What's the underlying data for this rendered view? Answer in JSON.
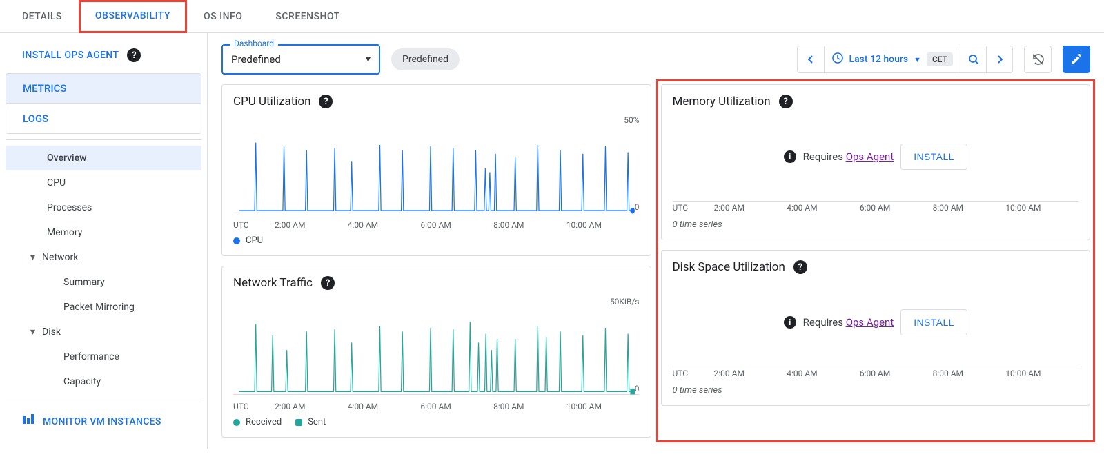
{
  "tabs": {
    "details": "DETAILS",
    "observability": "OBSERVABILITY",
    "os_info": "OS INFO",
    "screenshot": "SCREENSHOT"
  },
  "sidebar": {
    "install_ops": "INSTALL OPS AGENT",
    "side_tabs": {
      "metrics": "METRICS",
      "logs": "LOGS"
    },
    "nav": {
      "overview": "Overview",
      "cpu": "CPU",
      "processes": "Processes",
      "memory": "Memory",
      "network": "Network",
      "summary": "Summary",
      "packet_mirroring": "Packet Mirroring",
      "disk": "Disk",
      "performance": "Performance",
      "capacity": "Capacity"
    },
    "monitor": "MONITOR VM INSTANCES"
  },
  "toolbar": {
    "dashboard_label": "Dashboard",
    "dashboard_value": "Predefined",
    "chip": "Predefined",
    "time_range": "Last 12 hours",
    "tz": "CET"
  },
  "colors": {
    "accent": "#1a73e8",
    "cpu_line": "#1a73e8",
    "received": "#26a69a",
    "sent": "#26a69a",
    "highlight": "#ea4335",
    "link_purple": "#7b1fa2"
  },
  "charts": {
    "cpu": {
      "title": "CPU Utilization",
      "y_top": "50%",
      "y_bot": "0",
      "x_labels": [
        "UTC",
        "2:00 AM",
        "4:00 AM",
        "6:00 AM",
        "8:00 AM",
        "10:00 AM"
      ],
      "legend": [
        {
          "label": "CPU",
          "color": "#1a73e8",
          "shape": "circle"
        }
      ],
      "spike_x": [
        40,
        90,
        130,
        180,
        210,
        260,
        300,
        350,
        390,
        430,
        447,
        455,
        465,
        500,
        540,
        580,
        620,
        660,
        700
      ],
      "spike_h": [
        95,
        90,
        85,
        88,
        70,
        92,
        85,
        90,
        88,
        85,
        60,
        55,
        80,
        75,
        92,
        85,
        80,
        90,
        82
      ],
      "baseline": 3
    },
    "net": {
      "title": "Network Traffic",
      "y_top": "50KiB/s",
      "y_bot": "0",
      "x_labels": [
        "UTC",
        "2:00 AM",
        "4:00 AM",
        "6:00 AM",
        "8:00 AM",
        "10:00 AM"
      ],
      "legend": [
        {
          "label": "Received",
          "color": "#26a69a",
          "shape": "circle"
        },
        {
          "label": "Sent",
          "color": "#26a69a",
          "shape": "square"
        }
      ],
      "spike_x": [
        40,
        70,
        95,
        130,
        180,
        210,
        260,
        300,
        350,
        390,
        420,
        435,
        448,
        458,
        468,
        500,
        540,
        555,
        580,
        620,
        660,
        700
      ],
      "spike_h": [
        95,
        80,
        60,
        85,
        88,
        70,
        92,
        85,
        90,
        88,
        98,
        70,
        82,
        60,
        75,
        75,
        92,
        78,
        85,
        80,
        90,
        82
      ],
      "baseline": 4
    },
    "mem": {
      "title": "Memory Utilization",
      "requires": "Requires",
      "ops_agent": "Ops Agent",
      "install": "INSTALL",
      "x_labels": [
        "UTC",
        "2:00 AM",
        "4:00 AM",
        "6:00 AM",
        "8:00 AM",
        "10:00 AM"
      ],
      "zero": "0 time series"
    },
    "disk": {
      "title": "Disk Space Utilization",
      "requires": "Requires",
      "ops_agent": "Ops Agent",
      "install": "INSTALL",
      "x_labels": [
        "UTC",
        "2:00 AM",
        "4:00 AM",
        "6:00 AM",
        "8:00 AM",
        "10:00 AM"
      ],
      "zero": "0 time series"
    }
  }
}
